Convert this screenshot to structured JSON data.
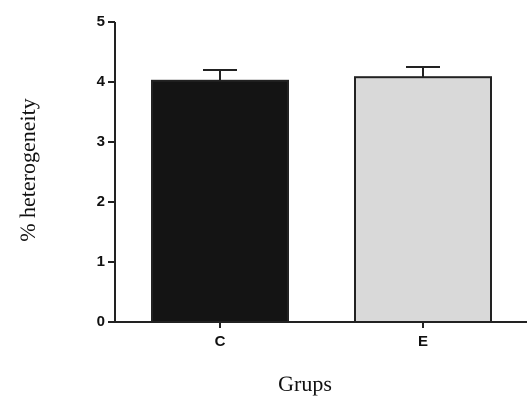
{
  "chart_data": {
    "type": "bar",
    "y_label": "% heterogeneity",
    "x_label": "Grups",
    "categories": [
      "C",
      "E"
    ],
    "values": [
      4.02,
      4.08
    ],
    "errors": [
      0.18,
      0.17
    ],
    "colors": [
      "#141414",
      "#d9d9d9"
    ],
    "ylim": [
      0,
      5
    ],
    "yticks": [
      0,
      1,
      2,
      3,
      4,
      5
    ]
  }
}
